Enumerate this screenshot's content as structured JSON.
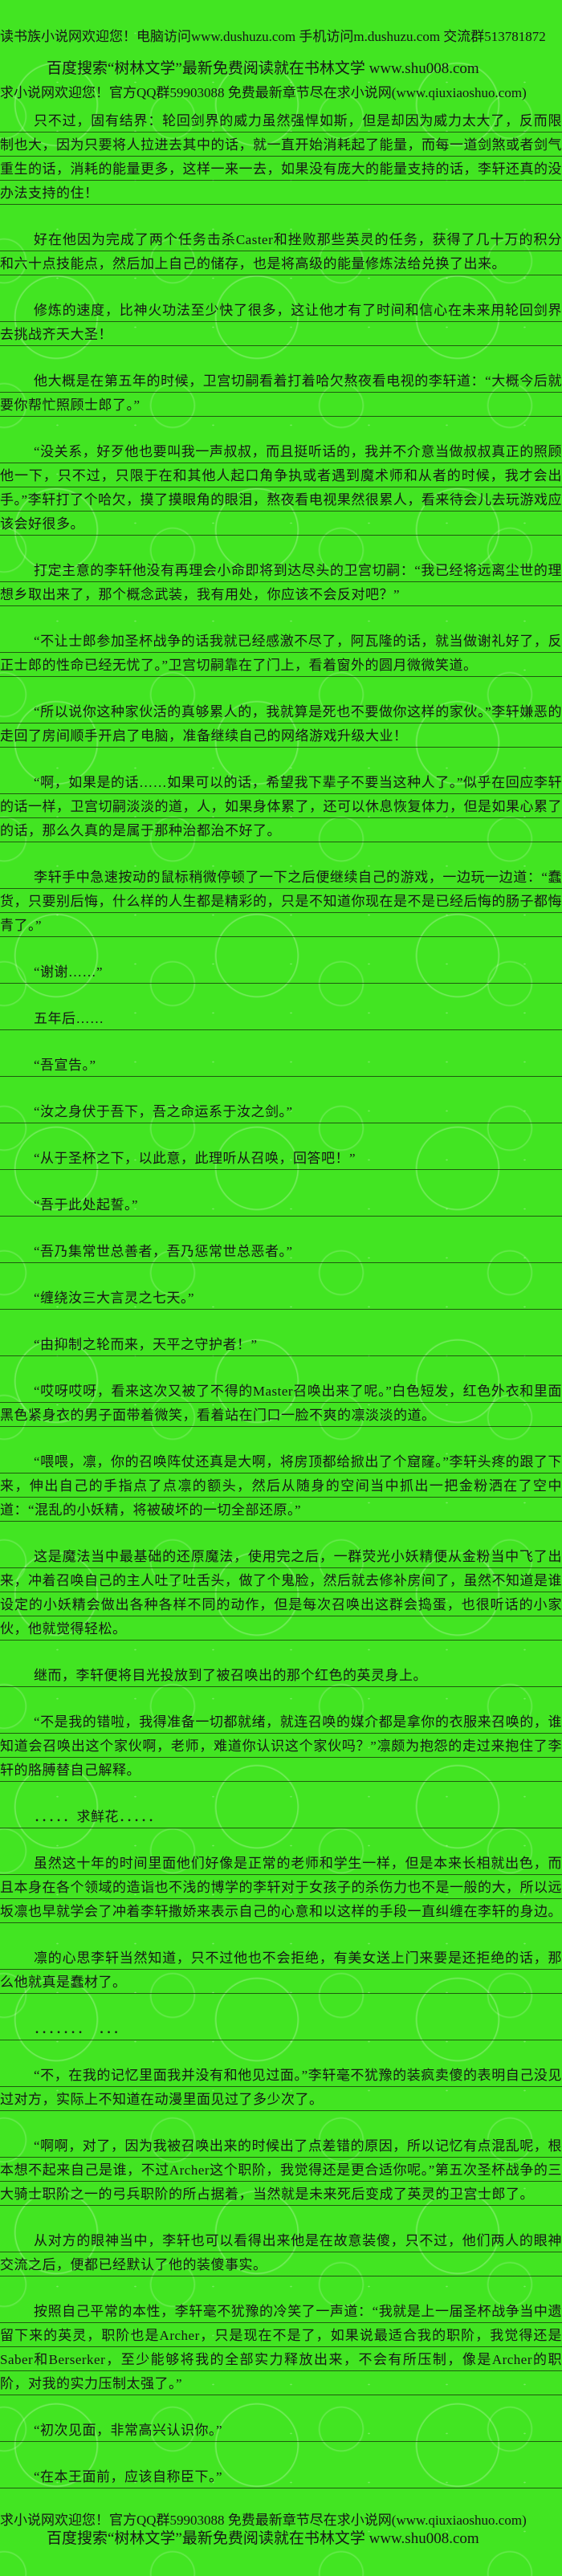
{
  "page": {
    "background_color": "#42e522",
    "text_color": "#161616",
    "rule_line_color": "rgba(18,38,8,0.72)"
  },
  "header": {
    "line1": "读书族小说网欢迎您！电脑访问www.dushuzu.com 手机访问m.dushuzu.com 交流群513781872",
    "line2": "百度搜索“树林文学”最新免费阅读就在书林文学 www.shu008.com",
    "line3": "求小说网欢迎您！官方QQ群59903088 免费最新章节尽在求小说网(www.qiuxiaoshuo.com)"
  },
  "content": {
    "paragraphs": [
      "只不过，固有结界：轮回剑界的威力虽然强悍如斯，但是却因为威力太大了，反而限制也大，因为只要将人拉进去其中的话，就一直开始消耗起了能量，而每一道剑煞或者剑气重生的话，消耗的能量更多，这样一来一去，如果没有庞大的能量支持的话，李轩还真的没办法支持的住！",
      "好在他因为完成了两个任务击杀Caster和挫败那些英灵的任务，获得了几十万的积分和六十点技能点，然后加上自己的储存，也是将高级的能量修炼法给兑换了出来。",
      "修炼的速度，比神火功法至少快了很多，这让他才有了时间和信心在未来用轮回剑界去挑战齐天大圣！",
      "他大概是在第五年的时候，卫宫切嗣看着打着哈欠熬夜看电视的李轩道：“大概今后就要你帮忙照顾士郎了。”",
      "“没关系，好歹他也要叫我一声叔叔，而且挺听话的，我并不介意当做叔叔真正的照顾他一下，只不过，只限于在和其他人起口角争执或者遇到魔术师和从者的时候，我才会出手。”李轩打了个哈欠，摸了摸眼角的眼泪，熬夜看电视果然很累人，看来待会儿去玩游戏应该会好很多。",
      "打定主意的李轩他没有再理会小命即将到达尽头的卫宫切嗣：“我已经将远离尘世的理想乡取出来了，那个概念武装，我有用处，你应该不会反对吧？”",
      "“不让士郎参加圣杯战争的话我就已经感激不尽了，阿瓦隆的话，就当做谢礼好了，反正士郎的性命已经无忧了。”卫宫切嗣靠在了门上，看着窗外的圆月微微笑道。",
      "“所以说你这种家伙活的真够累人的，我就算是死也不要做你这样的家伙。”李轩嫌恶的走回了房间顺手开启了电脑，准备继续自己的网络游戏升级大业！",
      "“啊，如果是的话……如果可以的话，希望我下辈子不要当这种人了。”似乎在回应李轩的话一样，卫宫切嗣淡淡的道，人，如果身体累了，还可以休息恢复体力，但是如果心累了的话，那么久真的是属于那种治都治不好了。",
      "李轩手中急速按动的鼠标稍微停顿了一下之后便继续自己的游戏，一边玩一边道：“蠢货，只要别后悔，什么样的人生都是精彩的，只是不知道你现在是不是已经后悔的肠子都悔青了。”",
      "“谢谢……”",
      "五年后……",
      "“吾宣告。”",
      "“汝之身伏于吾下，吾之命运系于汝之剑。”",
      "“从于圣杯之下，以此意，此理听从召唤，回答吧！”",
      "“吾于此处起誓。”",
      "“吾乃集常世总善者，吾乃惩常世总恶者。”",
      "“缠绕汝三大言灵之七天。”",
      "“由抑制之轮而来，天平之守护者！”",
      "“哎呀哎呀，看来这次又被了不得的Master召唤出来了呢。”白色短发，红色外衣和里面黑色紧身衣的男子面带着微笑，看着站在门口一脸不爽的凛淡淡的道。",
      "“喂喂，凛，你的召唤阵仗还真是大啊，将房顶都给掀出了个窟窿。”李轩头疼的跟了下来，伸出自己的手指点了点凛的额头，然后从随身的空间当中抓出一把金粉洒在了空中道：“混乱的小妖精，将被破坏的一切全部还原。”",
      "这是魔法当中最基础的还原魔法，使用完之后，一群荧光小妖精便从金粉当中飞了出来，冲着召唤自己的主人吐了吐舌头，做了个鬼脸，然后就去修补房间了，虽然不知道是谁设定的小妖精会做出各种各样不同的动作，但是每次召唤出这群会捣蛋，也很听话的小家伙，他就觉得轻松。",
      "继而，李轩便将目光投放到了被召唤出的那个红色的英灵身上。",
      "“不是我的错啦，我得准备一切都就绪，就连召唤的媒介都是拿你的衣服来召唤的，谁知道会召唤出这个家伙啊，老师，难道你认识这个家伙吗？”凛颇为抱怨的走过来抱住了李轩的胳膊替自己解释。",
      "．．．．．求鲜花．．．．．",
      "虽然这十年的时间里面他们好像是正常的老师和学生一样，但是本来长相就出色，而且本身在各个领域的造诣也不浅的博学的李轩对于女孩子的杀伤力也不是一般的大，所以远坂凛也早就学会了冲着李轩撒娇来表示自己的心意和以这样的手段一直纠缠在李轩的身边。",
      "凛的心思李轩当然知道，只不过他也不会拒绝，有美女送上门来要是还拒绝的话，那么他就真是蠢材了。",
      "．．．．．．．　．．．",
      "“不，在我的记忆里面我并没有和他见过面。”李轩毫不犹豫的装疯卖傻的表明自己没见过对方，实际上不知道在动漫里面见过了多少次了。",
      "“啊啊，对了，因为我被召唤出来的时候出了点差错的原因，所以记忆有点混乱呢，根本想不起来自己是谁，不过Archer这个职阶，我觉得还是更合适你呢。”第五次圣杯战争的三大骑士职阶之一的弓兵职阶的所占据着，当然就是未来死后变成了英灵的卫宫士郎了。",
      "从对方的眼神当中，李轩也可以看得出来他是在故意装傻，只不过，他们两人的眼神交流之后，便都已经默认了他的装傻事实。",
      "按照自己平常的本性，李轩毫不犹豫的冷笑了一声道：“我就是上一届圣杯战争当中遗留下来的英灵，职阶也是Archer，只是现在不是了，如果说最适合我的职阶，我觉得还是Saber和Berserker，至少能够将我的全部实力释放出来，不会有所压制，像是Archer的职阶，对我的实力压制太强了。”",
      "“初次见面，非常高兴认识你。”",
      "“在本王面前，应该自称臣下。”"
    ]
  },
  "footer": {
    "line1": "求小说网欢迎您！官方QQ群59903088 免费最新章节尽在求小说网(www.qiuxiaoshuo.com)",
    "line2": "百度搜索“树林文学”最新免费阅读就在书林文学 www.shu008.com"
  }
}
